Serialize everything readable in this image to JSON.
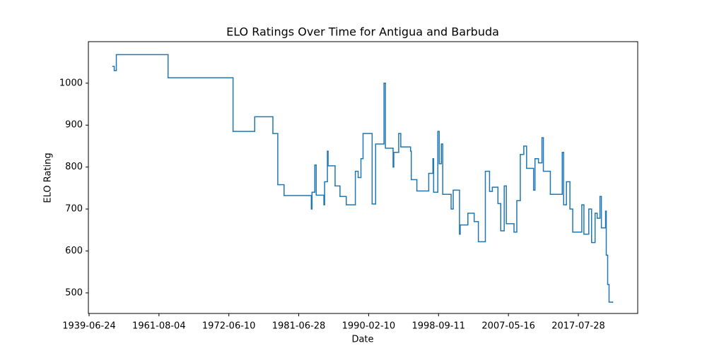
{
  "chart_data": {
    "type": "line",
    "step": "post",
    "title": "ELO Ratings Over Time for Antigua and Barbuda",
    "x_label": "Date",
    "y_label": "ELO Rating",
    "color": "#1f77b4",
    "x": [
      34,
      36,
      39,
      113,
      206,
      237,
      263,
      270,
      279,
      318,
      319,
      323,
      325,
      336,
      337,
      341,
      342,
      352,
      359,
      368,
      381,
      385,
      389,
      392,
      405,
      410,
      422,
      424,
      435,
      436,
      443,
      446,
      460,
      461,
      469,
      486,
      492,
      493,
      499,
      501,
      504,
      506,
      518,
      521,
      530,
      531,
      542,
      551,
      557,
      567,
      573,
      577,
      585,
      589,
      594,
      597,
      608,
      612,
      617,
      622,
      626,
      636,
      638,
      643,
      648,
      650,
      660,
      677,
      679,
      683,
      688,
      692,
      705,
      708,
      715,
      719,
      724,
      727,
      731,
      733,
      739,
      740,
      742,
      744,
      749
    ],
    "values": [
      1040,
      1030,
      1068,
      1013,
      885,
      920,
      880,
      758,
      732,
      700,
      740,
      805,
      733,
      710,
      765,
      838,
      803,
      755,
      730,
      710,
      790,
      775,
      820,
      880,
      712,
      855,
      1000,
      845,
      800,
      835,
      880,
      848,
      838,
      770,
      743,
      785,
      820,
      740,
      885,
      808,
      855,
      735,
      700,
      745,
      640,
      662,
      690,
      670,
      622,
      790,
      742,
      752,
      713,
      648,
      755,
      665,
      645,
      720,
      830,
      850,
      797,
      745,
      820,
      810,
      870,
      790,
      735,
      835,
      710,
      765,
      700,
      645,
      710,
      640,
      700,
      620,
      690,
      678,
      730,
      655,
      695,
      590,
      520,
      478,
      478
    ],
    "xlim": [
      -1,
      785
    ],
    "ylim": [
      451,
      1099
    ],
    "xticks": [
      {
        "value": 0,
        "label": "1939-06-24"
      },
      {
        "value": 100,
        "label": "1961-08-04"
      },
      {
        "value": 200,
        "label": "1972-06-10"
      },
      {
        "value": 300,
        "label": "1981-06-28"
      },
      {
        "value": 400,
        "label": "1990-02-10"
      },
      {
        "value": 500,
        "label": "1998-09-11"
      },
      {
        "value": 600,
        "label": "2007-05-16"
      },
      {
        "value": 700,
        "label": "2017-07-28"
      }
    ],
    "yticks": [
      500,
      600,
      700,
      800,
      900,
      1000
    ]
  }
}
